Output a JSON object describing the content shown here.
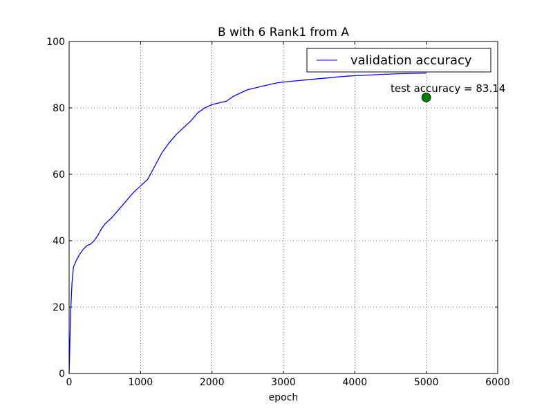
{
  "chart_data": {
    "type": "line",
    "title": "B with 6 Rank1 from A",
    "xlabel": "epoch",
    "ylabel": "",
    "xlim": [
      0,
      6000
    ],
    "ylim": [
      0,
      100
    ],
    "xticks": [
      0,
      1000,
      2000,
      3000,
      4000,
      5000,
      6000
    ],
    "yticks": [
      0,
      20,
      40,
      60,
      80,
      100
    ],
    "grid": true,
    "legend_position": "top-right",
    "series": [
      {
        "name": "validation accuracy",
        "color": "#0000ff",
        "x": [
          0,
          10,
          20,
          40,
          60,
          100,
          150,
          200,
          250,
          300,
          350,
          400,
          450,
          500,
          600,
          700,
          800,
          900,
          1000,
          1100,
          1200,
          1300,
          1400,
          1500,
          1600,
          1700,
          1800,
          1900,
          2000,
          2100,
          2200,
          2300,
          2400,
          2500,
          2600,
          2700,
          2800,
          2900,
          3000,
          3200,
          3400,
          3600,
          3800,
          4000,
          4200,
          4400,
          4600,
          4800,
          5000
        ],
        "y": [
          0,
          8,
          18,
          27,
          32,
          34,
          36,
          37.5,
          38.5,
          39,
          40,
          41.5,
          43.5,
          45,
          47,
          49.5,
          52,
          54.5,
          56.5,
          58.5,
          62.5,
          66.5,
          69.5,
          72,
          74,
          76,
          78.5,
          80,
          81,
          81.5,
          82,
          83.5,
          84.5,
          85.5,
          86,
          86.5,
          87,
          87.5,
          87.8,
          88.2,
          88.6,
          89.0,
          89.4,
          89.7,
          89.9,
          90.1,
          90.3,
          90.4,
          90.5
        ]
      }
    ],
    "points": [
      {
        "name": "test accuracy",
        "x": 5000,
        "y": 83.14,
        "color": "#008000"
      }
    ],
    "annotations": [
      {
        "text": "test accuracy = 83.14",
        "x": 5000,
        "y": 83.14
      }
    ]
  }
}
